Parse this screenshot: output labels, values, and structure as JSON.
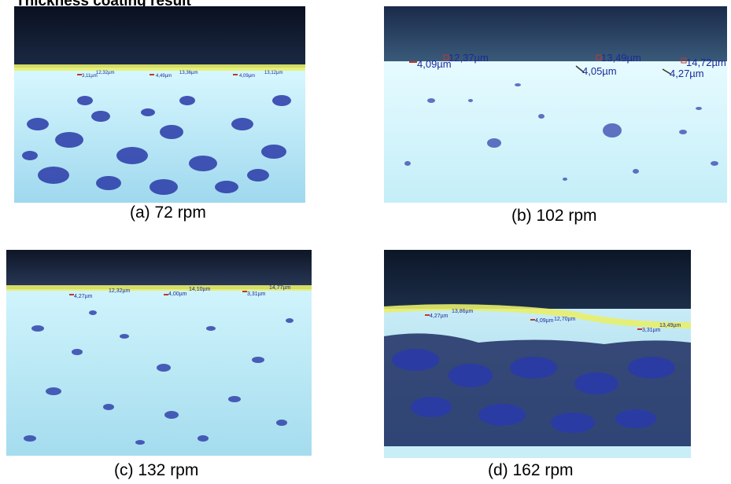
{
  "title": "Thickness  coating result",
  "panels": [
    {
      "id": "a",
      "caption": "(a)  72 rpm",
      "measurements": [
        "3,11µm",
        "12,32µm",
        "4,49µm",
        "13,36µm",
        "4,09µm",
        "13,12µm"
      ]
    },
    {
      "id": "b",
      "caption": "(b) 102 rpm",
      "measurements": [
        "4,09µm",
        "12,37µm",
        "13,49µm",
        "4,05µm",
        "14,72µm",
        "4,27µm"
      ]
    },
    {
      "id": "c",
      "caption": "(c) 132 rpm",
      "measurements": [
        "4,27µm",
        "12,32µm",
        "4,00µm",
        "14,10µm",
        "3,31µm",
        "14,77µm"
      ]
    },
    {
      "id": "d",
      "caption": "(d) 162 rpm",
      "measurements": [
        "4,27µm",
        "13,86µm",
        "4,09µm",
        "12,70µm",
        "3,31µm",
        "13,49µm"
      ]
    }
  ],
  "colors": {
    "dark_band": "#101a33",
    "coating_line": "#e8f06a",
    "substrate": "#c8f0f6",
    "particles": "#2a3aa8",
    "measure_text": "#1a2a9a",
    "measure_mark": "#c0392b"
  }
}
